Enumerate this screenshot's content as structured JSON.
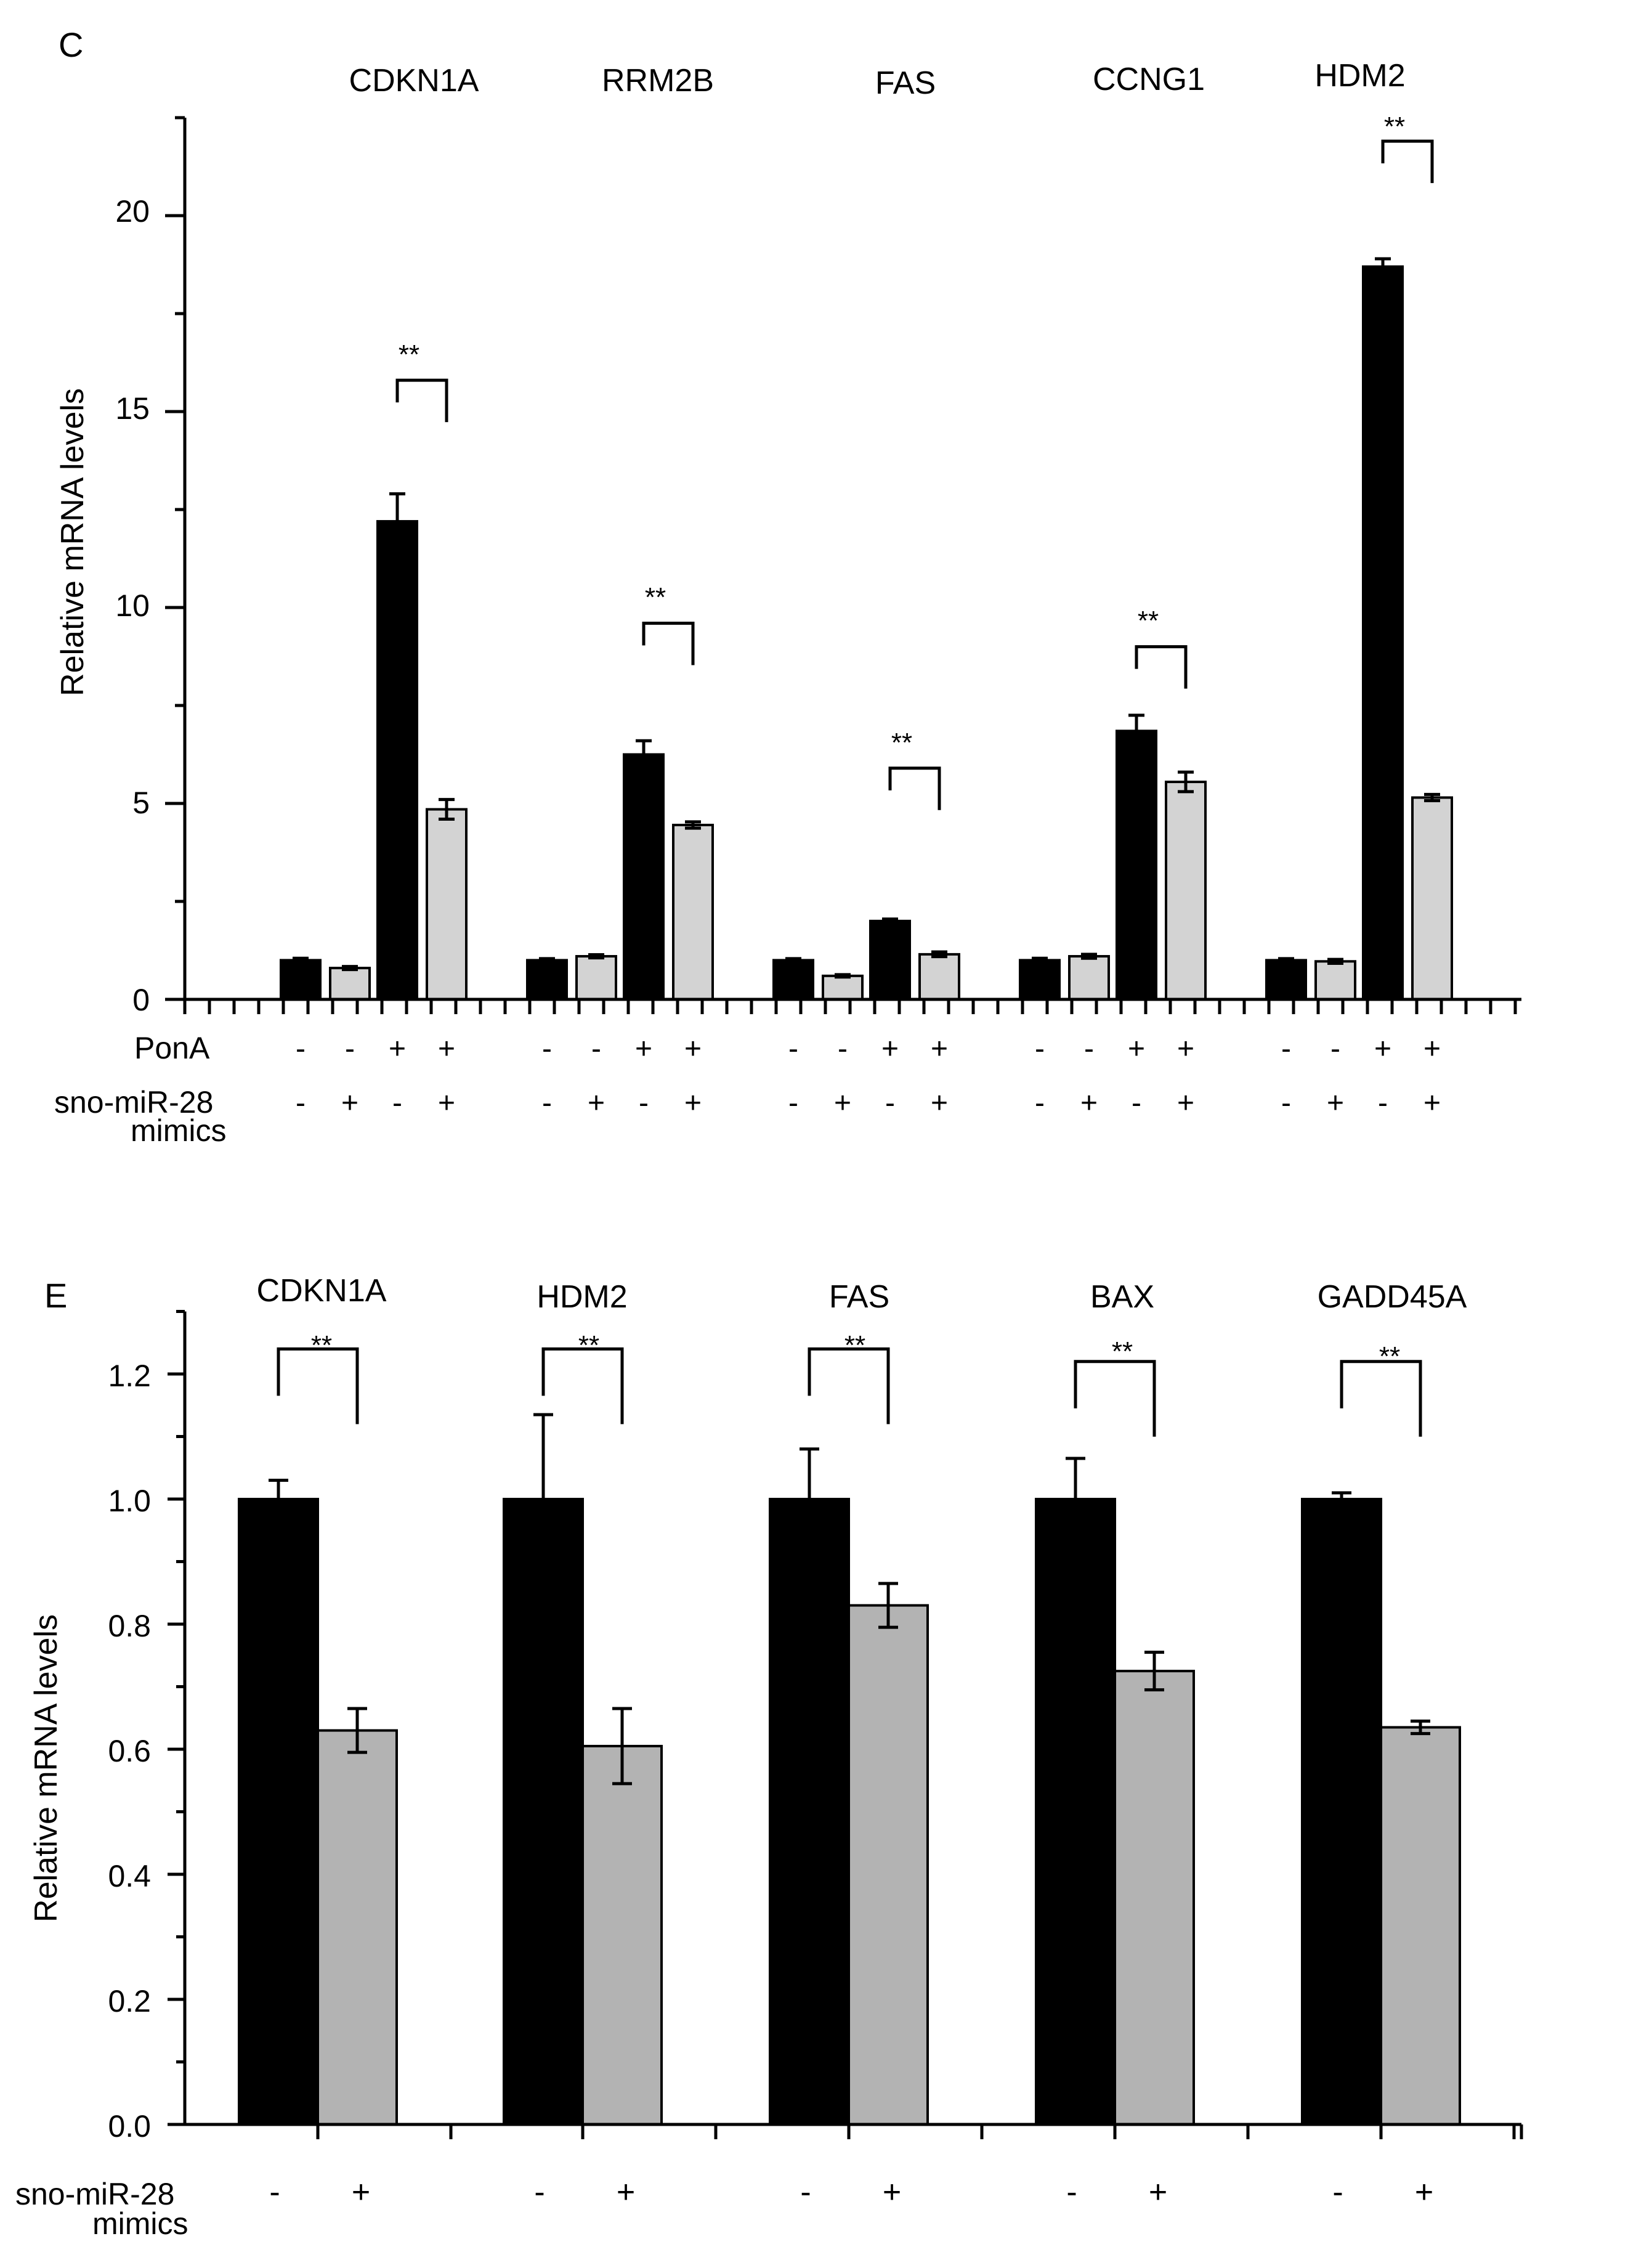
{
  "colors": {
    "dark": "#000000",
    "light_c": "#d3d3d3",
    "light_e": "#b3b3b3"
  },
  "chart_data": [
    {
      "panel_label": "C",
      "type": "bar",
      "ylabel": "Relative mRNA levels",
      "ylim": [
        0,
        22.5
      ],
      "yticks": [
        "0",
        "5",
        "10",
        "15",
        "20"
      ],
      "tick_values": [
        0,
        5,
        10,
        15,
        20
      ],
      "minor_step": 2.5,
      "categories": [
        "CDKN1A",
        "RRM2B",
        "FAS",
        "CCNG1",
        "HDM2"
      ],
      "conditions": [
        {
          "ponA": "-",
          "mimic": "-",
          "color": "dark"
        },
        {
          "ponA": "-",
          "mimic": "+",
          "color": "light"
        },
        {
          "ponA": "+",
          "mimic": "-",
          "color": "dark"
        },
        {
          "ponA": "+",
          "mimic": "+",
          "color": "light"
        }
      ],
      "values": [
        [
          1.0,
          0.8,
          12.2,
          4.85
        ],
        [
          1.0,
          1.1,
          6.25,
          4.45
        ],
        [
          1.0,
          0.6,
          2.0,
          1.15
        ],
        [
          1.0,
          1.1,
          6.85,
          5.55
        ],
        [
          1.0,
          0.97,
          18.7,
          5.15
        ]
      ],
      "errors": [
        [
          0.05,
          0.04,
          0.7,
          0.25
        ],
        [
          0.04,
          0.04,
          0.35,
          0.08
        ],
        [
          0.04,
          0.03,
          0.05,
          0.06
        ],
        [
          0.05,
          0.05,
          0.4,
          0.25
        ],
        [
          0.04,
          0.05,
          0.2,
          0.08
        ]
      ],
      "significance": [
        {
          "category": 0,
          "left": 2,
          "right": 3,
          "label": "**",
          "level": 15.8
        },
        {
          "category": 1,
          "left": 2,
          "right": 3,
          "label": "**",
          "level": 9.6
        },
        {
          "category": 2,
          "left": 2,
          "right": 3,
          "label": "**",
          "level": 5.9
        },
        {
          "category": 3,
          "left": 2,
          "right": 3,
          "label": "**",
          "level": 9.0
        },
        {
          "category": 4,
          "left": 2,
          "right": 3,
          "label": "**",
          "level": 21.9
        }
      ],
      "row_labels": {
        "ponA": "PonA",
        "mimic_line1": "sno-miR-28",
        "mimic_line2": "mimics"
      }
    },
    {
      "panel_label": "E",
      "type": "bar",
      "ylabel": "Relative mRNA levels",
      "ylim": [
        0,
        1.3
      ],
      "yticks": [
        "0.0",
        "0.2",
        "0.4",
        "0.6",
        "0.8",
        "1.0",
        "1.2"
      ],
      "tick_values": [
        0.0,
        0.2,
        0.4,
        0.6,
        0.8,
        1.0,
        1.2
      ],
      "minor_step": 0.1,
      "categories": [
        "CDKN1A",
        "HDM2",
        "FAS",
        "BAX",
        "GADD45A"
      ],
      "conditions": [
        {
          "mimic": "-",
          "color": "dark"
        },
        {
          "mimic": "+",
          "color": "light"
        }
      ],
      "values": [
        [
          1.0,
          0.63
        ],
        [
          1.0,
          0.605
        ],
        [
          1.0,
          0.83
        ],
        [
          1.0,
          0.725
        ],
        [
          1.0,
          0.635
        ]
      ],
      "errors": [
        [
          0.03,
          0.035
        ],
        [
          0.135,
          0.06
        ],
        [
          0.08,
          0.035
        ],
        [
          0.065,
          0.03
        ],
        [
          0.01,
          0.01
        ]
      ],
      "significance": [
        {
          "category": 0,
          "left": 0,
          "right": 1,
          "label": "**",
          "level": 1.24
        },
        {
          "category": 1,
          "left": 0,
          "right": 1,
          "label": "**",
          "level": 1.24
        },
        {
          "category": 2,
          "left": 0,
          "right": 1,
          "label": "**",
          "level": 1.24
        },
        {
          "category": 3,
          "left": 0,
          "right": 1,
          "label": "**",
          "level": 1.22
        },
        {
          "category": 4,
          "left": 0,
          "right": 1,
          "label": "**",
          "level": 1.22
        }
      ],
      "row_labels": {
        "mimic_line1": "sno-miR-28",
        "mimic_line2": "mimics"
      }
    }
  ]
}
